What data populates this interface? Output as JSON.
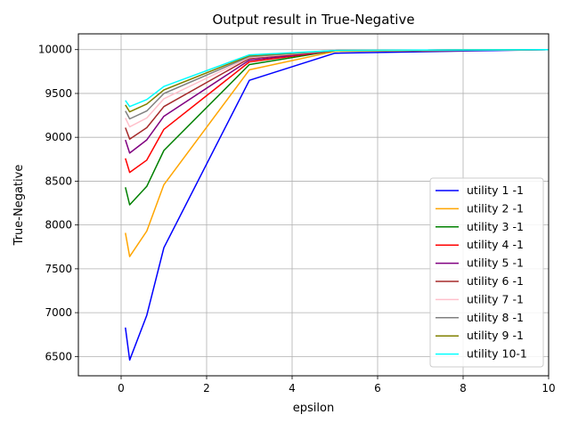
{
  "chart_data": {
    "type": "line",
    "title": "Output result in True-Negative",
    "xlabel": "epsilon",
    "ylabel": "True-Negative",
    "xlim": [
      -1,
      10
    ],
    "ylim": [
      6280,
      10180
    ],
    "xticks": [
      0,
      2,
      4,
      6,
      8,
      10
    ],
    "yticks": [
      6500,
      7000,
      7500,
      8000,
      8500,
      9000,
      9500,
      10000
    ],
    "grid": true,
    "legend_position": "lower-right",
    "x": [
      0.1,
      0.2,
      0.6,
      1,
      3,
      5,
      10
    ],
    "series": [
      {
        "name": "utility 1 -1",
        "color": "#0000ff",
        "values": [
          6830,
          6460,
          6970,
          7740,
          9650,
          9960,
          10000
        ]
      },
      {
        "name": "utility 2 -1",
        "color": "#ffa500",
        "values": [
          7910,
          7640,
          7930,
          8460,
          9770,
          9980,
          10000
        ]
      },
      {
        "name": "utility 3 -1",
        "color": "#008000",
        "values": [
          8430,
          8230,
          8440,
          8850,
          9830,
          9990,
          10000
        ]
      },
      {
        "name": "utility 4 -1",
        "color": "#ff0000",
        "values": [
          8760,
          8600,
          8740,
          9090,
          9860,
          9990,
          10000
        ]
      },
      {
        "name": "utility 5 -1",
        "color": "#800080",
        "values": [
          8970,
          8820,
          8970,
          9240,
          9880,
          9990,
          10000
        ]
      },
      {
        "name": "utility 6 -1",
        "color": "#a52a2a",
        "values": [
          9110,
          8980,
          9110,
          9350,
          9900,
          9990,
          10000
        ]
      },
      {
        "name": "utility 7 -1",
        "color": "#ffc0cb",
        "values": [
          9220,
          9120,
          9220,
          9440,
          9910,
          9990,
          10000
        ]
      },
      {
        "name": "utility 8 -1",
        "color": "#808080",
        "values": [
          9300,
          9210,
          9300,
          9500,
          9920,
          9990,
          10000
        ]
      },
      {
        "name": "utility 9 -1",
        "color": "#808000",
        "values": [
          9370,
          9290,
          9380,
          9540,
          9930,
          9990,
          10000
        ]
      },
      {
        "name": "utility 10-1",
        "color": "#00ffff",
        "values": [
          9420,
          9350,
          9430,
          9580,
          9940,
          9990,
          10000
        ]
      }
    ]
  }
}
